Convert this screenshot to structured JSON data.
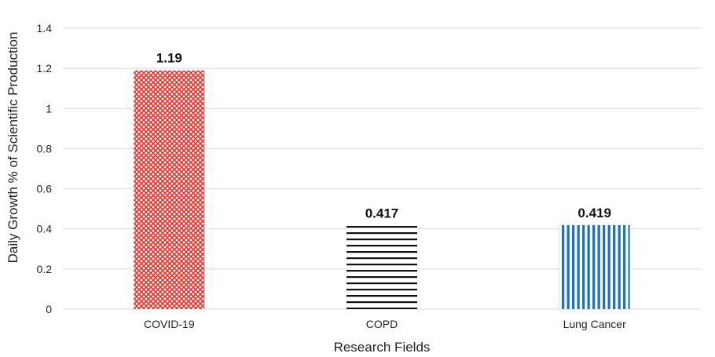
{
  "chart_data": {
    "type": "bar",
    "title": "",
    "xlabel": "Research Fields",
    "ylabel": "Daily Growth % of Scientific Production",
    "categories": [
      "COVID-19",
      "COPD",
      "Lung Cancer"
    ],
    "values": [
      1.19,
      0.417,
      0.419
    ],
    "data_labels": [
      "1.19",
      "0.417",
      "0.419"
    ],
    "yticks": [
      "0",
      "0.2",
      "0.4",
      "0.6",
      "0.8",
      "1",
      "1.2",
      "1.4"
    ],
    "ylim": [
      0,
      1.4
    ],
    "grid": "horizontal",
    "legend": "none",
    "bar_styles": [
      {
        "pattern": "crosshatch",
        "color": "#e8302a"
      },
      {
        "pattern": "horizontal-lines",
        "color": "#111111"
      },
      {
        "pattern": "vertical-lines",
        "color": "#1f73b7"
      }
    ]
  }
}
